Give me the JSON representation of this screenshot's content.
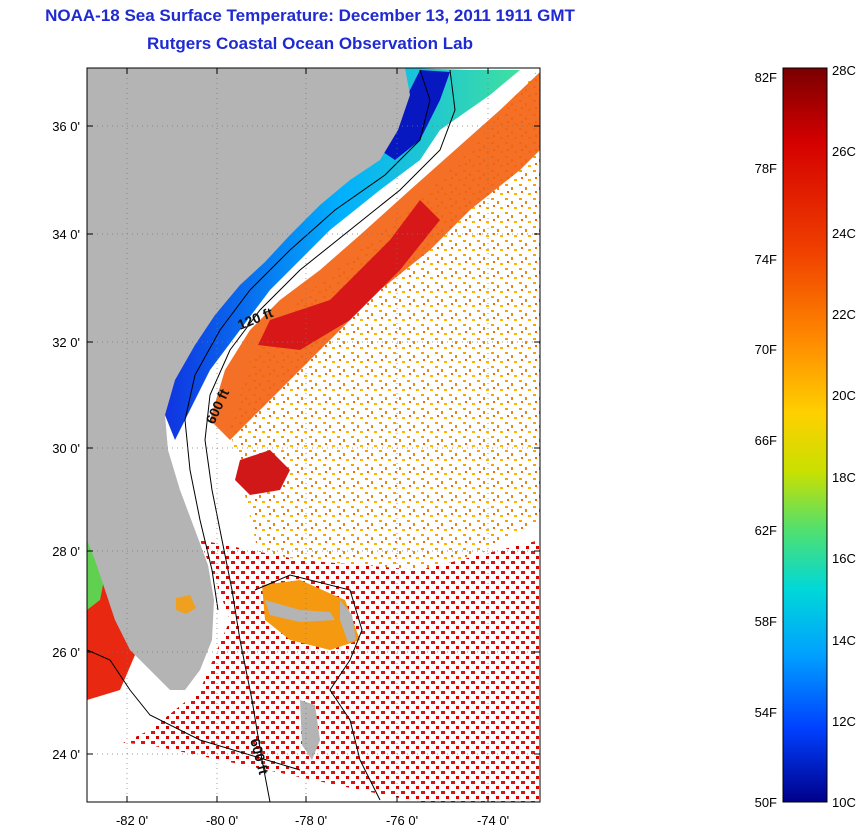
{
  "header": {
    "title": "NOAA-18 Sea Surface Temperature:  December 13, 2011 1911 GMT",
    "subtitle": "Rutgers Coastal Ocean Observation Lab"
  },
  "map": {
    "lat_labels": [
      "36 0'",
      "34 0'",
      "32 0'",
      "30 0'",
      "28 0'",
      "26 0'",
      "24 0'"
    ],
    "lon_labels": [
      "-82 0'",
      "-80 0'",
      "-78 0'",
      "-76 0'",
      "-74 0'"
    ],
    "contour_labels": [
      "120 ft",
      "600 ft",
      "600 ft"
    ],
    "land_color": "#b4b4b4",
    "cloud_mask_color": "#ffffff"
  },
  "colorbar": {
    "fahrenheit_labels": [
      "82F",
      "78F",
      "74F",
      "70F",
      "66F",
      "62F",
      "58F",
      "54F",
      "50F"
    ],
    "celsius_labels": [
      "28C",
      "26C",
      "24C",
      "22C",
      "20C",
      "18C",
      "16C",
      "14C",
      "12C",
      "10C"
    ],
    "colors": [
      "#7a0000",
      "#d40000",
      "#f04000",
      "#ff8a00",
      "#ffd000",
      "#c8e000",
      "#50e070",
      "#00d8d8",
      "#00a0ff",
      "#0040ff",
      "#00008a"
    ]
  }
}
